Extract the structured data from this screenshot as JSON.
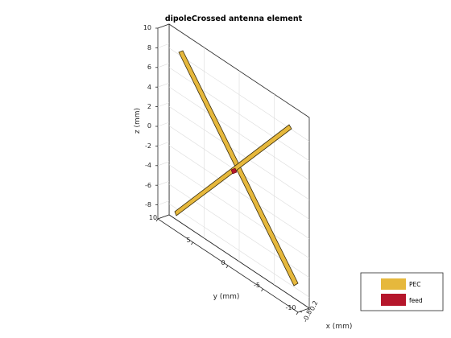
{
  "figure": {
    "title": "dipoleCrossed antenna element"
  },
  "axes": {
    "z": {
      "label": "z (mm)",
      "ticks": [
        "10",
        "8",
        "6",
        "4",
        "2",
        "0",
        "-2",
        "-4",
        "-6",
        "-8"
      ]
    },
    "y": {
      "label": "y (mm)",
      "ticks": [
        "10",
        "5",
        "0",
        "-5",
        "-10"
      ]
    },
    "x": {
      "label": "x (mm)",
      "ticks": [
        "0.2",
        "-0.8"
      ]
    }
  },
  "legend": {
    "items": [
      {
        "label": "PEC",
        "color": "#e6b83c"
      },
      {
        "label": "feed",
        "color": "#b5162b"
      }
    ]
  },
  "colors": {
    "pec": "#e6b83c",
    "pec_edge": "#3a2e0e",
    "feed": "#b5162b",
    "grid": "#dcdcdc",
    "box": "#262626"
  }
}
